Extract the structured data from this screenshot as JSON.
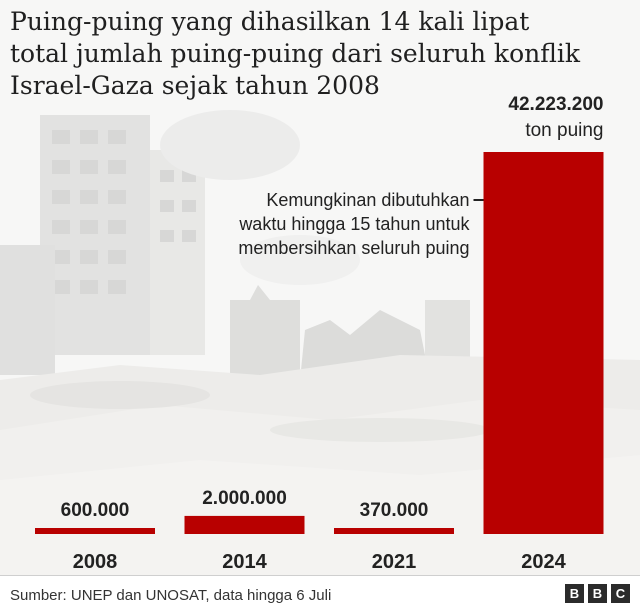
{
  "title_lines": [
    "Puing-puing yang dihasilkan 14 kali lipat",
    "total jumlah puing-puing dari seluruh konflik",
    "Israel-Gaza sejak tahun 2008"
  ],
  "chart_data": {
    "type": "bar",
    "categories": [
      "2008",
      "2014",
      "2021",
      "2024"
    ],
    "values": [
      600000,
      2000000,
      370000,
      42223200
    ],
    "value_labels": [
      "600.000",
      "2.000.000",
      "370.000",
      "42.223.200"
    ],
    "unit_label": "ton puing",
    "annotation_lines": [
      "Kemungkinan dibutuhkan",
      "waktu hingga 15 tahun untuk",
      "membersihkan seluruh puing"
    ],
    "ylim": [
      0,
      42223200
    ],
    "bar_color": "#b80000",
    "grid": false
  },
  "footer": {
    "source": "Sumber: UNEP dan UNOSAT, data hingga 6 Juli",
    "logo_letters": [
      "B",
      "B",
      "C"
    ]
  }
}
